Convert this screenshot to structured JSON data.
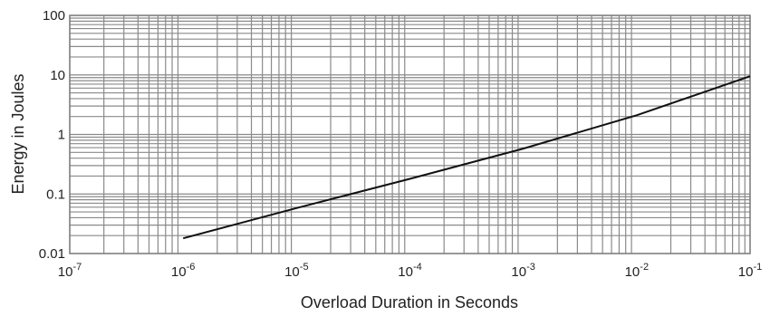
{
  "chart_data": {
    "type": "line",
    "title": "",
    "xlabel": "Overload Duration in Seconds",
    "ylabel": "Energy in Joules",
    "x_scale": "log",
    "y_scale": "log",
    "xlim": [
      1e-07,
      0.1
    ],
    "ylim": [
      0.01,
      100
    ],
    "grid": true,
    "legend": "none",
    "x_ticks": [
      {
        "value": 1e-07,
        "base": "10",
        "exp": "-7"
      },
      {
        "value": 1e-06,
        "base": "10",
        "exp": "-6"
      },
      {
        "value": 1e-05,
        "base": "10",
        "exp": "-5"
      },
      {
        "value": 0.0001,
        "base": "10",
        "exp": "-4"
      },
      {
        "value": 0.001,
        "base": "10",
        "exp": "-3"
      },
      {
        "value": 0.01,
        "base": "10",
        "exp": "-2"
      },
      {
        "value": 0.1,
        "base": "10",
        "exp": "-1"
      }
    ],
    "y_ticks": [
      {
        "value": 0.01,
        "label": "0.01"
      },
      {
        "value": 0.1,
        "label": "0.1"
      },
      {
        "value": 1,
        "label": "1"
      },
      {
        "value": 10,
        "label": "10"
      },
      {
        "value": 100,
        "label": "100"
      }
    ],
    "series": [
      {
        "color": "#111111",
        "points": [
          {
            "x": 1e-06,
            "y": 0.018
          },
          {
            "x": 1e-05,
            "y": 0.058
          },
          {
            "x": 0.0001,
            "y": 0.18
          },
          {
            "x": 0.001,
            "y": 0.58
          },
          {
            "x": 0.01,
            "y": 2.1
          },
          {
            "x": 0.1,
            "y": 9.5
          }
        ]
      }
    ]
  }
}
